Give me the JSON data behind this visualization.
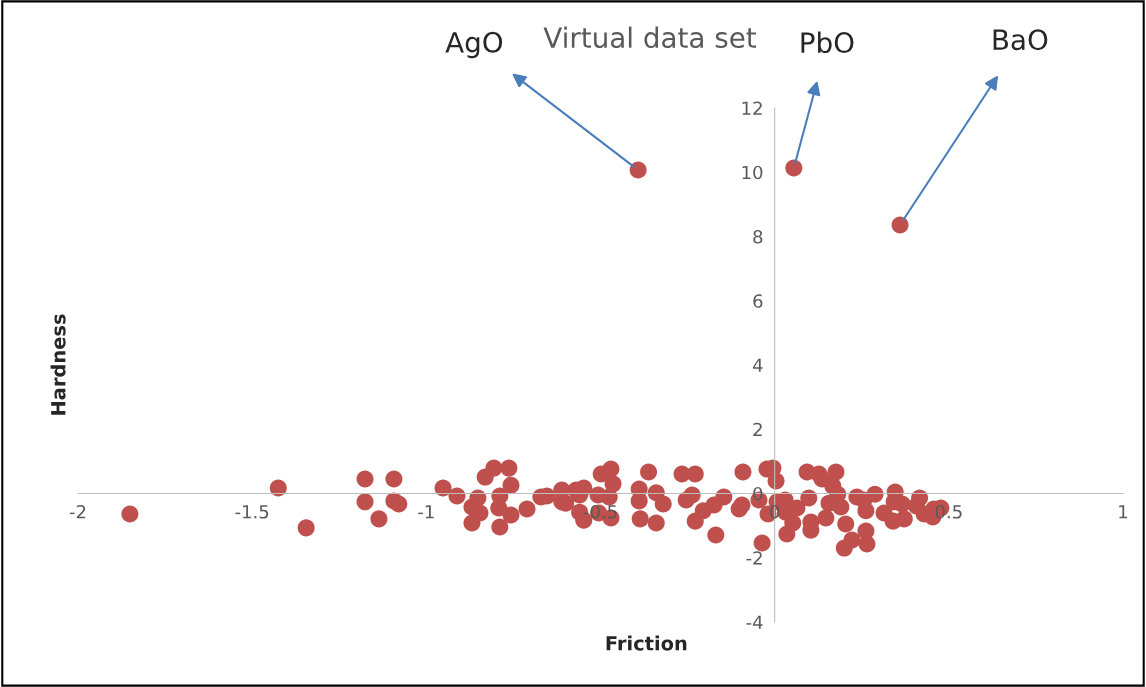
{
  "chart_data": {
    "type": "scatter",
    "title": "Virtual data set",
    "xlabel": "Friction",
    "ylabel": "Hardness",
    "x": [
      -1.851,
      -1.425,
      -1.345,
      -1.176,
      -1.176,
      -1.136,
      -1.093,
      -1.093,
      -1.079,
      -0.952,
      -0.912,
      -0.869,
      -0.869,
      -0.852,
      -0.846,
      -0.831,
      -0.806,
      -0.789,
      -0.789,
      -0.792,
      -0.763,
      -0.757,
      -0.757,
      -0.711,
      -0.671,
      -0.654,
      -0.611,
      -0.611,
      -0.6,
      -0.57,
      -0.56,
      -0.56,
      -0.548,
      -0.548,
      -0.507,
      -0.505,
      -0.498,
      -0.47,
      -0.464,
      -0.475,
      -0.47,
      -0.389,
      -0.389,
      -0.386,
      -0.362,
      -0.34,
      -0.34,
      -0.32,
      -0.266,
      -0.254,
      -0.228,
      -0.237,
      -0.228,
      -0.205,
      -0.174,
      -0.169,
      -0.146,
      -0.102,
      -0.091,
      -0.094,
      -0.045,
      -0.036,
      -0.022,
      -0.005,
      0.004,
      -0.019,
      0.007,
      0.03,
      0.032,
      0.035,
      0.052,
      0.064,
      0.093,
      0.098,
      0.104,
      0.104,
      0.127,
      0.136,
      0.147,
      0.176,
      0.167,
      0.181,
      0.156,
      0.19,
      0.204,
      0.222,
      0.2,
      0.236,
      0.256,
      0.262,
      0.262,
      0.265,
      0.288,
      0.314,
      0.346,
      0.343,
      0.34,
      0.372,
      0.366,
      0.407,
      0.416,
      0.429,
      0.454,
      0.457,
      0.477,
      -0.392,
      0.055,
      0.36
    ],
    "values": [
      -0.64,
      0.17,
      -1.07,
      0.45,
      -0.26,
      -0.79,
      0.45,
      -0.23,
      -0.33,
      0.17,
      -0.08,
      -0.42,
      -0.92,
      -0.14,
      -0.61,
      0.51,
      0.79,
      -0.08,
      -1.04,
      -0.45,
      0.79,
      0.26,
      -0.67,
      -0.48,
      -0.11,
      -0.08,
      0.11,
      -0.26,
      -0.3,
      0.11,
      -0.05,
      -0.58,
      0.17,
      -0.83,
      -0.05,
      -0.61,
      0.61,
      0.76,
      0.3,
      -0.11,
      -0.76,
      0.14,
      -0.23,
      -0.79,
      0.67,
      0.02,
      -0.92,
      -0.33,
      0.61,
      -0.2,
      0.61,
      -0.05,
      -0.86,
      -0.54,
      -0.36,
      -1.29,
      -0.11,
      -0.48,
      0.67,
      -0.36,
      -0.2,
      -1.54,
      0.76,
      0.79,
      0.39,
      -0.64,
      -0.26,
      -0.2,
      -0.58,
      -1.26,
      -0.92,
      -0.45,
      0.67,
      -0.14,
      -0.89,
      -1.14,
      0.61,
      0.45,
      -0.76,
      0.67,
      0.23,
      -0.02,
      -0.3,
      -0.42,
      -0.95,
      -1.45,
      -1.7,
      -0.11,
      -0.2,
      -0.54,
      -1.17,
      -1.57,
      -0.02,
      -0.61,
      0.05,
      -0.26,
      -0.86,
      -0.79,
      -0.33,
      -0.39,
      -0.14,
      -0.64,
      -0.73,
      -0.48,
      -0.45,
      10.07,
      10.13,
      8.36
    ],
    "color": "#c0504d",
    "marker": "circle",
    "xlim": [
      -2,
      1
    ],
    "ylim": [
      -4,
      12
    ],
    "xticks": [
      -2,
      -1.5,
      -1,
      -0.5,
      0,
      0.5,
      1
    ],
    "yticks": [
      -4,
      -2,
      0,
      2,
      4,
      6,
      8,
      10,
      12
    ],
    "grid": false,
    "legend": false,
    "annotations": [
      {
        "text": "AgO",
        "x": -0.392,
        "y": 10.07
      },
      {
        "text": "PbO",
        "x": 0.055,
        "y": 10.13
      },
      {
        "text": "BaO",
        "x": 0.36,
        "y": 8.36
      }
    ]
  }
}
